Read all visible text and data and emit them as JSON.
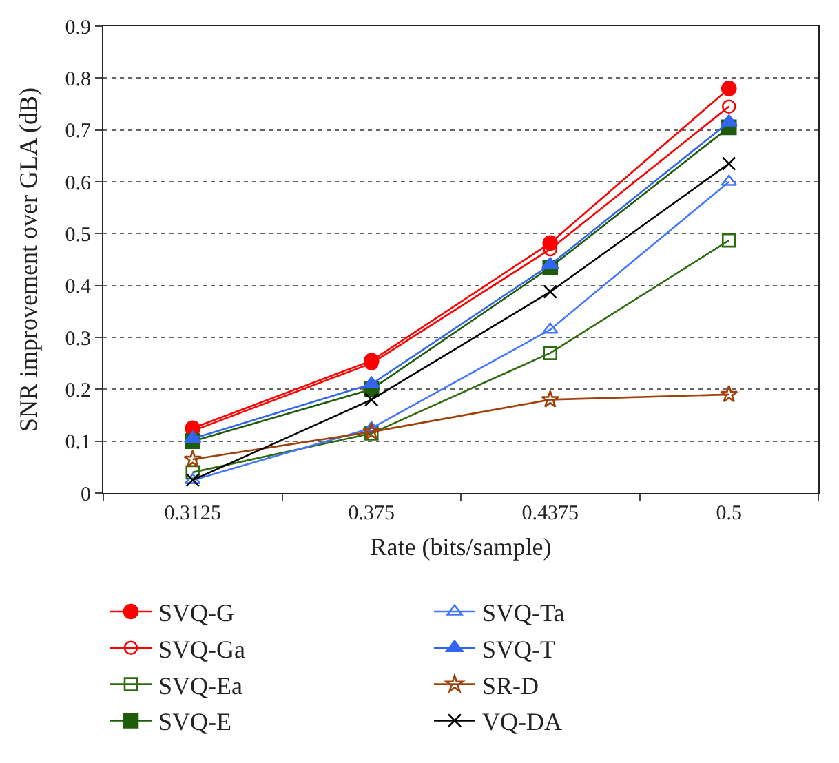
{
  "chart_data": {
    "type": "line",
    "xlabel": "Rate (bits/sample)",
    "ylabel": "SNR improvement over GLA (dB)",
    "categories": [
      "0.3125",
      "0.375",
      "0.4375",
      "0.5"
    ],
    "ylim": [
      0,
      0.9
    ],
    "yticks": [
      0,
      0.1,
      0.2,
      0.3,
      0.4,
      0.5,
      0.6,
      0.7,
      0.8,
      0.9
    ],
    "grid": "y",
    "legend": "bottom",
    "line_style": "solid",
    "series": [
      {
        "name": "SVQ-G",
        "color": "#ff0000",
        "marker": "circle",
        "values": [
          0.125,
          0.255,
          0.482,
          0.78
        ]
      },
      {
        "name": "SVQ-Ga",
        "color": "#ff0000",
        "marker": "circle-open",
        "values": [
          0.12,
          0.25,
          0.47,
          0.745
        ]
      },
      {
        "name": "SVQ-Ea",
        "color": "#2e6b0e",
        "marker": "square-open",
        "values": [
          0.04,
          0.115,
          0.27,
          0.487
        ]
      },
      {
        "name": "SVQ-E",
        "color": "#1f5c0a",
        "marker": "square",
        "values": [
          0.1,
          0.2,
          0.435,
          0.705
        ]
      },
      {
        "name": "SVQ-Ta",
        "color": "#4477ff",
        "marker": "triangle-open",
        "values": [
          0.025,
          0.125,
          0.315,
          0.6
        ]
      },
      {
        "name": "SVQ-T",
        "color": "#3366ee",
        "marker": "triangle",
        "values": [
          0.105,
          0.21,
          0.44,
          0.715
        ]
      },
      {
        "name": "SR-D",
        "color": "#a0400a",
        "marker": "star",
        "values": [
          0.065,
          0.118,
          0.18,
          0.19
        ]
      },
      {
        "name": "VQ-DA",
        "color": "#000000",
        "marker": "cross",
        "values": [
          0.025,
          0.18,
          0.388,
          0.635
        ]
      }
    ]
  }
}
